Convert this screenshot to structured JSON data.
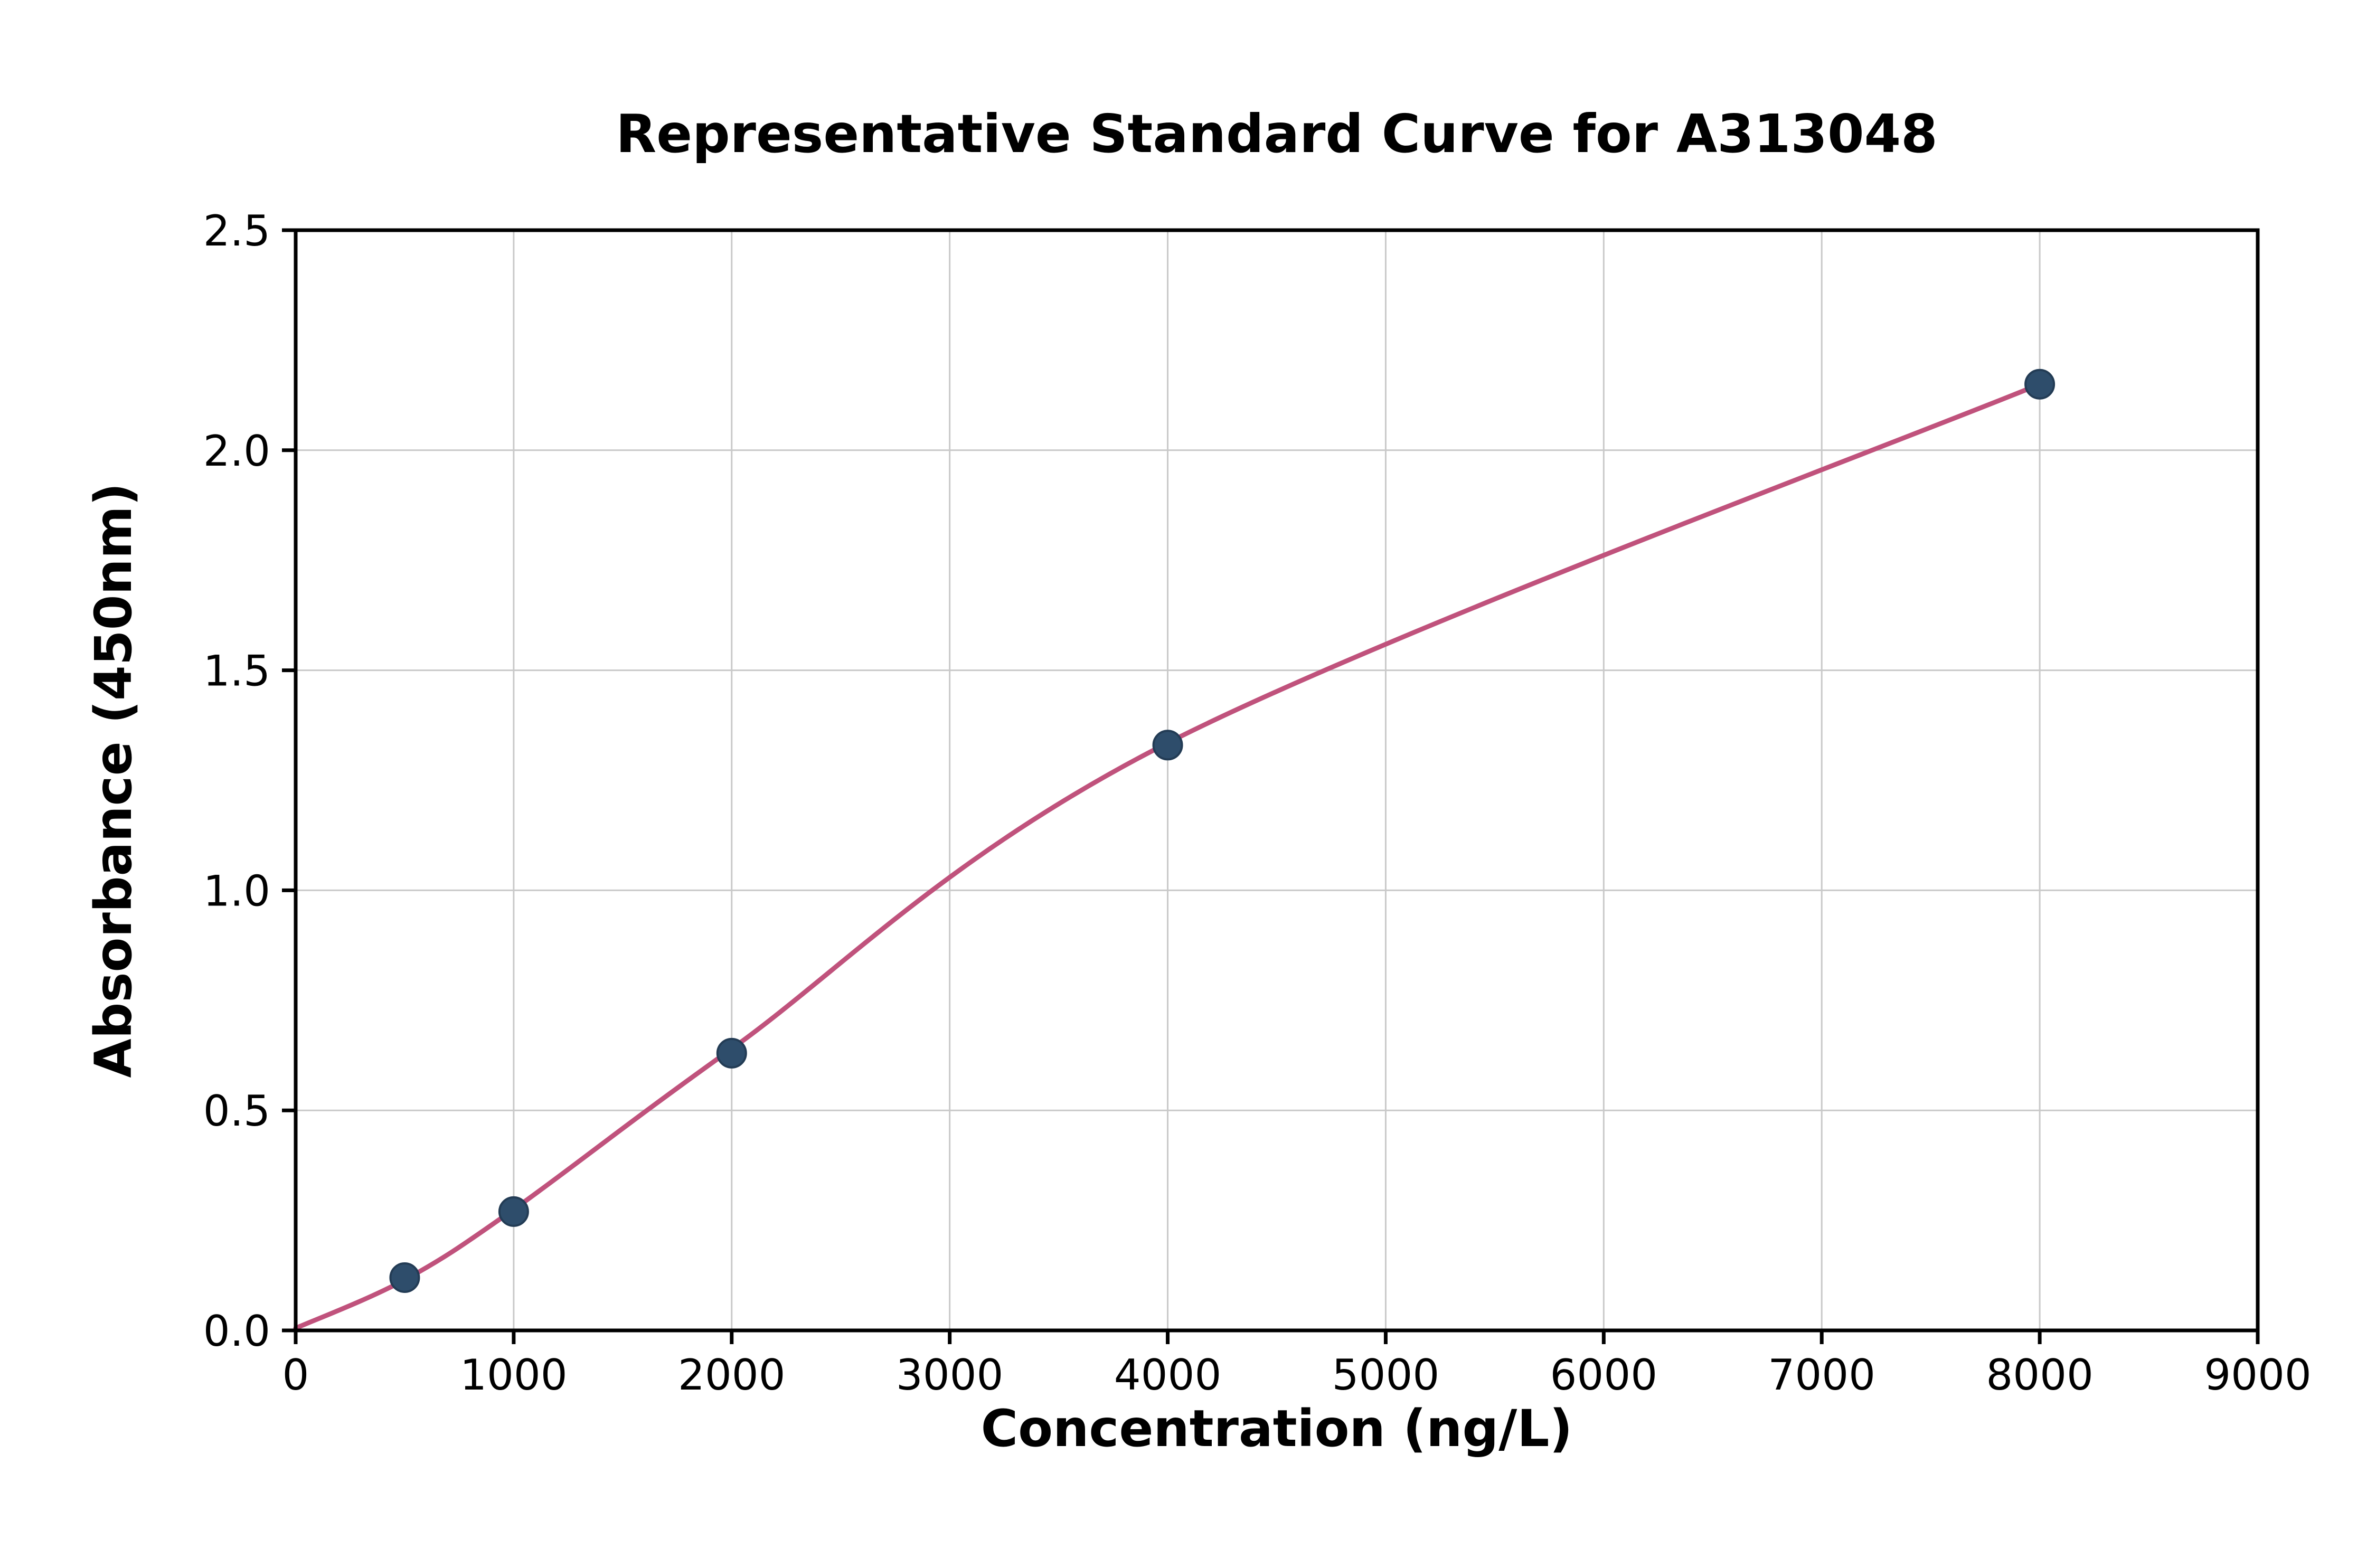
{
  "chart_data": {
    "type": "line",
    "title": "Representative Standard Curve for A313048",
    "xlabel": "Concentration (ng/L)",
    "ylabel": "Absorbance (450nm)",
    "xlim": [
      0,
      9000
    ],
    "ylim": [
      0,
      2.5
    ],
    "grid": true,
    "legend": "none",
    "x_ticks": [
      {
        "value": 0,
        "label": "0"
      },
      {
        "value": 1000,
        "label": "1000"
      },
      {
        "value": 2000,
        "label": "2000"
      },
      {
        "value": 3000,
        "label": "3000"
      },
      {
        "value": 4000,
        "label": "4000"
      },
      {
        "value": 5000,
        "label": "5000"
      },
      {
        "value": 6000,
        "label": "6000"
      },
      {
        "value": 7000,
        "label": "7000"
      },
      {
        "value": 8000,
        "label": "8000"
      },
      {
        "value": 9000,
        "label": "9000"
      }
    ],
    "y_ticks": [
      {
        "value": 0.0,
        "label": "0.0"
      },
      {
        "value": 0.5,
        "label": "0.5"
      },
      {
        "value": 1.0,
        "label": "1.0"
      },
      {
        "value": 1.5,
        "label": "1.5"
      },
      {
        "value": 2.0,
        "label": "2.0"
      },
      {
        "value": 2.5,
        "label": "2.5"
      }
    ],
    "points": {
      "x": [
        500,
        1000,
        2000,
        4000,
        8000
      ],
      "y": [
        0.12,
        0.27,
        0.63,
        1.33,
        2.15
      ]
    },
    "curve": {
      "x": [
        0,
        500,
        1000,
        2000,
        4000,
        8000
      ],
      "y": [
        0.005,
        0.115,
        0.275,
        0.64,
        1.335,
        2.15
      ]
    },
    "colors": {
      "curve": "#c0527c",
      "marker": "#2e4d6b",
      "marker_edge": "#233c55",
      "grid": "#c9c9c9",
      "axis": "#000000",
      "background": "#ffffff"
    }
  }
}
